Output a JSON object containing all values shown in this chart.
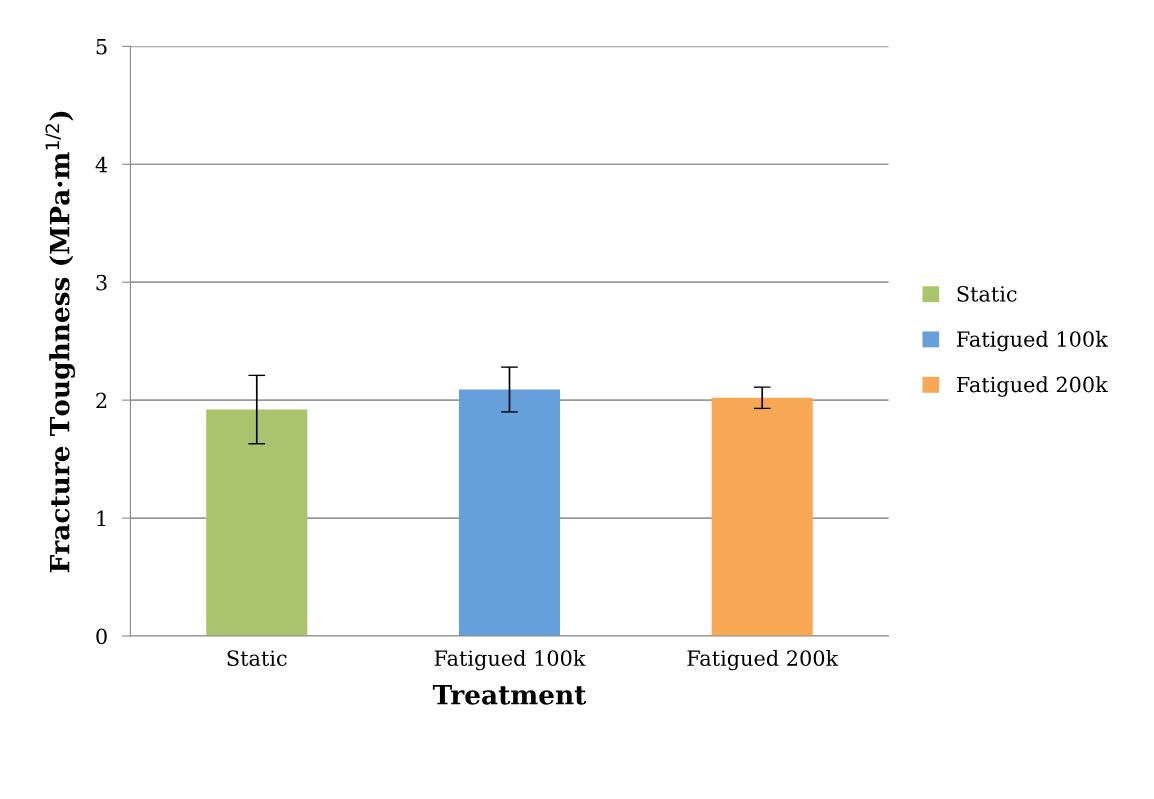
{
  "chart_data": {
    "type": "bar",
    "xlabel": "Treatment",
    "ylabel": "Fracture Toughness (MPa·m$^{1/2}$)",
    "categories": [
      "Static",
      "Fatigued 100k",
      "Fatigued 200k"
    ],
    "stacked": true,
    "series": [
      {
        "name": "Static",
        "color": "#a9c46c",
        "values": [
          1.92,
          null,
          null
        ],
        "errors": [
          0.29,
          null,
          null
        ]
      },
      {
        "name": "Fatigued 100k",
        "color": "#65a0dc",
        "values": [
          null,
          2.09,
          null
        ],
        "errors": [
          null,
          0.19,
          null
        ]
      },
      {
        "name": "Fatigued 200k",
        "color": "#f8a754",
        "values": [
          null,
          null,
          2.02
        ],
        "errors": [
          null,
          null,
          0.09
        ]
      }
    ],
    "ylim": [
      0,
      5
    ],
    "yticks": [
      0,
      1,
      2,
      3,
      4,
      5
    ],
    "grid": "y",
    "legend": "right"
  }
}
